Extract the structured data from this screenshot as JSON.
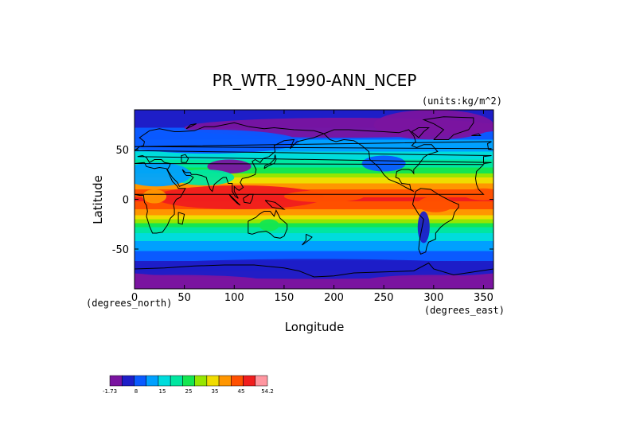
{
  "chart_data": {
    "type": "heatmap",
    "title": "PR_WTR_1990-ANN_NCEP",
    "units": "(units:kg/m^2)",
    "xlabel": "Longitude",
    "ylabel": "Latitude",
    "x_units": "(degrees_east)",
    "y_units": "(degrees_north)",
    "xlim": [
      0,
      360
    ],
    "ylim": [
      -90,
      90
    ],
    "xticks": [
      "0",
      "50",
      "100",
      "150",
      "200",
      "250",
      "300",
      "350"
    ],
    "yticks": [
      "50",
      "0",
      "-50"
    ],
    "xtick_values": [
      0,
      50,
      100,
      150,
      200,
      250,
      300,
      350
    ],
    "ytick_values": [
      50,
      0,
      -50
    ],
    "colorbar": {
      "min": -1.73,
      "max": 54.2,
      "labels": [
        "-1.73",
        "8",
        "15",
        "25",
        "35",
        "45",
        "54.2"
      ],
      "colors": [
        "#7a14a0",
        "#1e1ec8",
        "#0a5aff",
        "#00a0ff",
        "#00dcdc",
        "#00e6a0",
        "#14e650",
        "#96e600",
        "#f0dc00",
        "#ff9600",
        "#ff5000",
        "#f01e1e",
        "#ff96a0"
      ]
    },
    "latitude_profile": {
      "lat": [
        90,
        75,
        60,
        45,
        30,
        15,
        5,
        0,
        -10,
        -20,
        -30,
        -45,
        -60,
        -70,
        -80,
        -90
      ],
      "value": [
        3,
        6,
        11,
        17,
        25,
        38,
        45,
        46,
        42,
        32,
        22,
        14,
        8,
        3,
        1,
        -1
      ]
    }
  }
}
